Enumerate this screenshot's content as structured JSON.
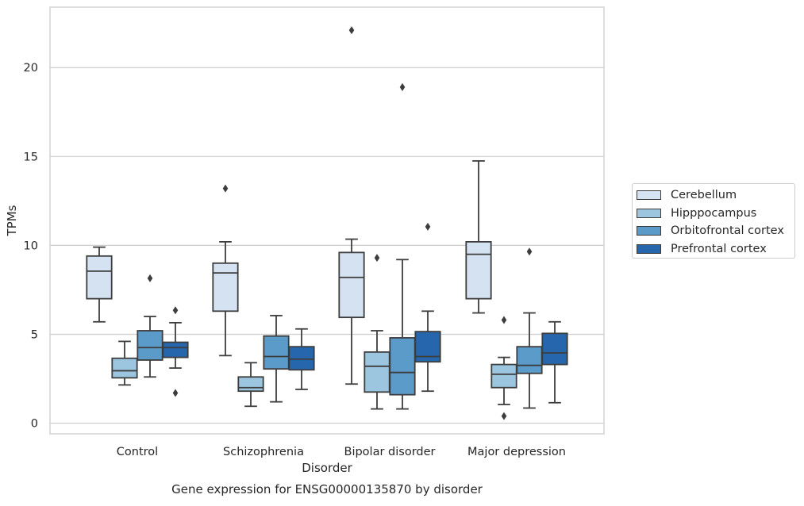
{
  "chart_data": {
    "type": "boxplot",
    "caption": "Gene expression for ENSG00000135870 by disorder",
    "xlabel": "Disorder",
    "ylabel": "TPMs",
    "ylim": [
      -0.6,
      23.4
    ],
    "yticks": [
      0,
      5,
      10,
      15,
      20
    ],
    "categories": [
      "Control",
      "Schizophrenia",
      "Bipolar disorder",
      "Major depression"
    ],
    "grid": "horizontal",
    "legend_position": "right",
    "series": [
      {
        "name": "Cerebellum",
        "color": "#d4e2f1",
        "boxes": [
          {
            "whislo": 5.7,
            "q1": 7.0,
            "med": 8.55,
            "q3": 9.4,
            "whishi": 9.9,
            "fliers": []
          },
          {
            "whislo": 3.8,
            "q1": 6.3,
            "med": 8.45,
            "q3": 9.0,
            "whishi": 10.2,
            "fliers": [
              13.2
            ]
          },
          {
            "whislo": 2.2,
            "q1": 5.95,
            "med": 8.2,
            "q3": 9.6,
            "whishi": 10.35,
            "fliers": [
              22.1
            ]
          },
          {
            "whislo": 6.2,
            "q1": 7.0,
            "med": 9.5,
            "q3": 10.2,
            "whishi": 14.75,
            "fliers": []
          }
        ]
      },
      {
        "name": "Hipppocampus",
        "color": "#9cc6e0",
        "boxes": [
          {
            "whislo": 2.15,
            "q1": 2.55,
            "med": 2.95,
            "q3": 3.65,
            "whishi": 4.6,
            "fliers": []
          },
          {
            "whislo": 0.95,
            "q1": 1.8,
            "med": 2.0,
            "q3": 2.6,
            "whishi": 3.4,
            "fliers": []
          },
          {
            "whislo": 0.8,
            "q1": 1.75,
            "med": 3.2,
            "q3": 4.0,
            "whishi": 5.2,
            "fliers": [
              9.3
            ]
          },
          {
            "whislo": 1.05,
            "q1": 2.0,
            "med": 2.75,
            "q3": 3.3,
            "whishi": 3.7,
            "fliers": [
              0.4,
              5.8
            ]
          }
        ]
      },
      {
        "name": "Orbitofrontal cortex",
        "color": "#5a9bc9",
        "boxes": [
          {
            "whislo": 2.6,
            "q1": 3.55,
            "med": 4.25,
            "q3": 5.2,
            "whishi": 6.0,
            "fliers": [
              8.15
            ]
          },
          {
            "whislo": 1.2,
            "q1": 3.05,
            "med": 3.75,
            "q3": 4.9,
            "whishi": 6.05,
            "fliers": []
          },
          {
            "whislo": 0.8,
            "q1": 1.6,
            "med": 2.85,
            "q3": 4.8,
            "whishi": 9.2,
            "fliers": [
              18.9
            ]
          },
          {
            "whislo": 0.85,
            "q1": 2.8,
            "med": 3.25,
            "q3": 4.3,
            "whishi": 6.2,
            "fliers": [
              9.65
            ]
          }
        ]
      },
      {
        "name": "Prefrontal cortex",
        "color": "#2666ad",
        "boxes": [
          {
            "whislo": 3.1,
            "q1": 3.7,
            "med": 4.25,
            "q3": 4.55,
            "whishi": 5.65,
            "fliers": [
              1.7,
              6.35
            ]
          },
          {
            "whislo": 1.9,
            "q1": 3.0,
            "med": 3.6,
            "q3": 4.3,
            "whishi": 5.3,
            "fliers": []
          },
          {
            "whislo": 1.8,
            "q1": 3.45,
            "med": 3.75,
            "q3": 5.15,
            "whishi": 6.3,
            "fliers": [
              11.05
            ]
          },
          {
            "whislo": 1.15,
            "q1": 3.3,
            "med": 3.95,
            "q3": 5.05,
            "whishi": 5.7,
            "fliers": []
          }
        ]
      }
    ]
  }
}
